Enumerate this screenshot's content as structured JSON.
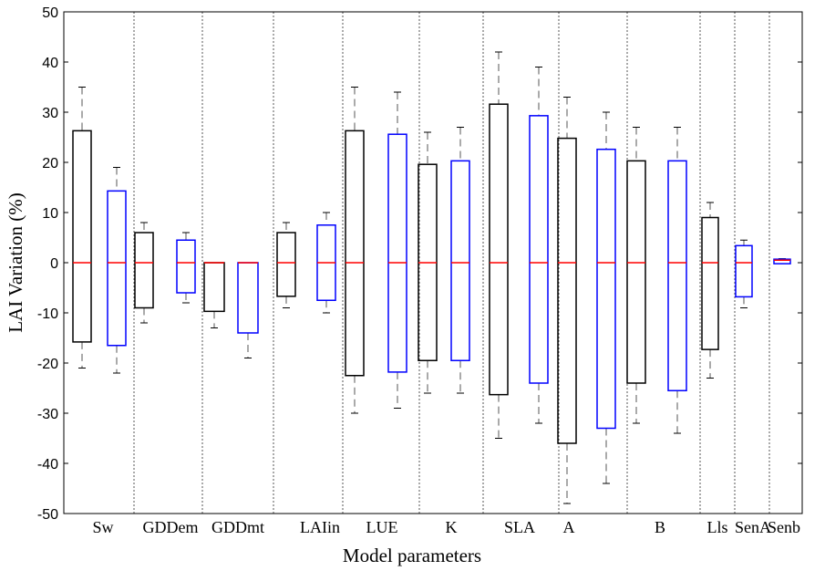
{
  "chart_data": {
    "type": "box",
    "xlabel": "Model parameters",
    "ylabel": "LAI  Variation (%)",
    "ylim": [
      -50,
      50
    ],
    "yticks": [
      50,
      40,
      30,
      20,
      10,
      0,
      -10,
      -20,
      -30,
      -40,
      -50
    ],
    "grid": false,
    "legend": "none",
    "colors": {
      "series_a": "#000000",
      "series_b": "#0000ff",
      "median": "#ff0000",
      "separator": "#555555"
    },
    "groups": [
      {
        "label": "Sw",
        "boxes": [
          {
            "series": 0,
            "min": -21,
            "q1": -15.8,
            "median": 0,
            "q3": 26.3,
            "max": 35
          },
          {
            "series": 1,
            "min": -22,
            "q1": -16.5,
            "median": 0,
            "q3": 14.3,
            "max": 19
          }
        ]
      },
      {
        "label": "GDDem",
        "boxes": [
          {
            "series": 0,
            "min": -12,
            "q1": -9,
            "median": 0,
            "q3": 6,
            "max": 8
          },
          {
            "series": 1,
            "min": -8,
            "q1": -6,
            "median": 0,
            "q3": 4.5,
            "max": 6
          }
        ]
      },
      {
        "label": "GDDmt",
        "boxes": [
          {
            "series": 0,
            "min": -13,
            "q1": -9.7,
            "median": 0,
            "q3": 0,
            "max": 0
          },
          {
            "series": 1,
            "min": -19,
            "q1": -14,
            "median": 0,
            "q3": 0,
            "max": 0
          }
        ]
      },
      {
        "label": "LAIin",
        "boxes": [
          {
            "series": 0,
            "min": -9,
            "q1": -6.7,
            "median": 0,
            "q3": 6,
            "max": 8
          },
          {
            "series": 1,
            "min": -10,
            "q1": -7.5,
            "median": 0,
            "q3": 7.5,
            "max": 10
          }
        ]
      },
      {
        "label": "LUE",
        "boxes": [
          {
            "series": 0,
            "min": -30,
            "q1": -22.5,
            "median": 0,
            "q3": 26.3,
            "max": 35
          },
          {
            "series": 1,
            "min": -29,
            "q1": -21.8,
            "median": 0,
            "q3": 25.6,
            "max": 34
          }
        ]
      },
      {
        "label": "K",
        "boxes": [
          {
            "series": 0,
            "min": -26,
            "q1": -19.5,
            "median": 0,
            "q3": 19.6,
            "max": 26
          },
          {
            "series": 1,
            "min": -26,
            "q1": -19.5,
            "median": 0,
            "q3": 20.3,
            "max": 27
          }
        ]
      },
      {
        "label": "SLA",
        "boxes": [
          {
            "series": 0,
            "min": -35,
            "q1": -26.3,
            "median": 0,
            "q3": 31.6,
            "max": 42
          },
          {
            "series": 1,
            "min": -32,
            "q1": -24,
            "median": 0,
            "q3": 29.3,
            "max": 39
          }
        ]
      },
      {
        "label": "A",
        "boxes": [
          {
            "series": 0,
            "min": -48,
            "q1": -36,
            "median": 0,
            "q3": 24.8,
            "max": 33
          },
          {
            "series": 1,
            "min": -44,
            "q1": -33,
            "median": 0,
            "q3": 22.6,
            "max": 30
          }
        ]
      },
      {
        "label": "B",
        "boxes": [
          {
            "series": 0,
            "min": -32,
            "q1": -24,
            "median": 0,
            "q3": 20.3,
            "max": 27
          },
          {
            "series": 1,
            "min": -34,
            "q1": -25.5,
            "median": 0,
            "q3": 20.3,
            "max": 27
          }
        ]
      },
      {
        "label": "Lls",
        "boxes": [
          {
            "series": 0,
            "min": -23,
            "q1": -17.3,
            "median": 0,
            "q3": 9,
            "max": 12
          }
        ]
      },
      {
        "label": "SenA",
        "boxes": [
          {
            "series": 1,
            "min": -9,
            "q1": -6.8,
            "median": 0,
            "q3": 3.4,
            "max": 4.5
          }
        ]
      },
      {
        "label": "Senb",
        "boxes": [
          {
            "series": 1,
            "min": -0.2,
            "q1": -0.2,
            "median": 0.5,
            "q3": 0.7,
            "max": 0.8
          }
        ]
      }
    ]
  }
}
